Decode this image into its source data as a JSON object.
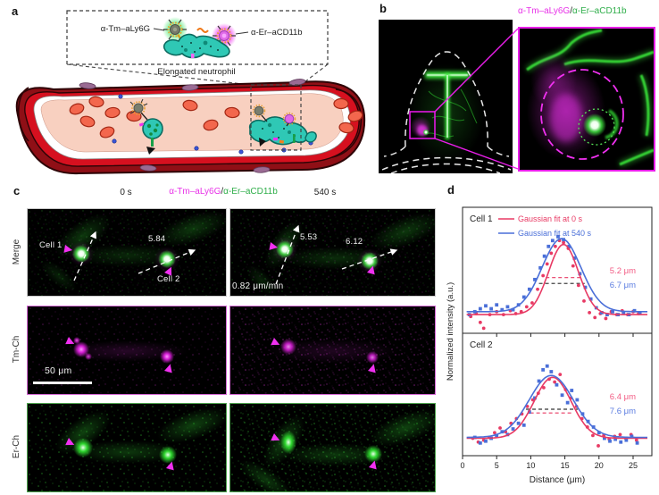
{
  "colors": {
    "magenta_label": "#e832e8",
    "green_label": "#2fae4a",
    "fit_0s": "#e83a64",
    "fit_540s": "#4a6fd8",
    "value_0s": "#f25c84",
    "value_540s": "#5b7ce0",
    "microscopy_green": "#38e038",
    "microscopy_magenta": "#e030e0"
  },
  "panels": {
    "a_label": "a",
    "b_label": "b",
    "c_label": "c",
    "d_label": "d"
  },
  "panel_a": {
    "antibody_left": "α-Tm–aLy6G",
    "antibody_right": "α-Er–aCD11b",
    "caption": "Elongated neutrophil"
  },
  "panel_b": {
    "header_tm": "α-Tm–aLy6G",
    "header_sep": "/",
    "header_er": "α-Er–aCD11b"
  },
  "panel_c": {
    "time_0": "0 s",
    "time_540": "540 s",
    "header_tm": "α-Tm–aLy6G",
    "header_sep": "/",
    "header_er": "α-Er–aCD11b",
    "rows": [
      "Merge",
      "Tm-Ch",
      "Er-Ch"
    ],
    "cell1_label": "Cell 1",
    "cell2_label": "Cell 2",
    "merge_0s_value": "5.84",
    "merge_540s_value1": "5.53",
    "merge_540s_value2": "6.12",
    "speed": "0.82 μm/min",
    "scale_bar": "50 μm"
  },
  "panel_d": {
    "ylabel": "Normalized intensity (a.u.)",
    "xlabel": "Distance (μm)"
  },
  "chart_data": [
    {
      "type": "line+scatter",
      "title": "Cell 1",
      "xlabel": "Distance (μm)",
      "ylabel": "Normalized intensity (a.u.)",
      "x_ticks": [
        0,
        5,
        10,
        15,
        20,
        25
      ],
      "xlim": [
        0,
        27.7
      ],
      "show_x_tick_labels": false,
      "legend": [
        {
          "label": "Gaussian fit at 0 s",
          "color": "#e83a64"
        },
        {
          "label": "Gaussian fit at 540 s",
          "color": "#4a6fd8"
        }
      ],
      "fits": [
        {
          "name": "Gaussian fit at 0 s",
          "color": "#e83a64",
          "center": 14.8,
          "fwhm_um": 5.2,
          "peak": 0.82,
          "baseline": 0.1,
          "value_label": "5.2 μm",
          "value_color": "#f25c84"
        },
        {
          "name": "Gaussian fit at 540 s",
          "color": "#4a6fd8",
          "center": 14.5,
          "fwhm_um": 6.7,
          "peak": 0.88,
          "baseline": 0.13,
          "value_label": "6.7 μm",
          "value_color": "#5b7ce0"
        }
      ],
      "fwhm_markers": [
        {
          "color": "#e83a64",
          "y": 0.48,
          "x1": 12.2,
          "x2": 17.4
        },
        {
          "color": "#444444",
          "y": 0.42,
          "x1": 11.2,
          "x2": 17.9
        }
      ],
      "scatter": [
        {
          "marker": "circle",
          "color": "#e83a64",
          "points": [
            [
              1.2,
              0.08
            ],
            [
              2,
              0.11
            ],
            [
              2.6,
              0.02
            ],
            [
              3.1,
              -0.04
            ],
            [
              4,
              0.1
            ],
            [
              5,
              0.13
            ],
            [
              6,
              0.1
            ],
            [
              7,
              0.14
            ],
            [
              7.8,
              0.11
            ],
            [
              8.6,
              0.13
            ],
            [
              9.4,
              0.18
            ],
            [
              10.2,
              0.22
            ],
            [
              11,
              0.36
            ],
            [
              11.8,
              0.5
            ],
            [
              12.4,
              0.62
            ],
            [
              13,
              0.73
            ],
            [
              13.6,
              0.8
            ],
            [
              14.2,
              0.86
            ],
            [
              14.8,
              0.84
            ],
            [
              15.5,
              0.78
            ],
            [
              16.2,
              0.6
            ],
            [
              17,
              0.4
            ],
            [
              17.8,
              0.24
            ],
            [
              18.6,
              0.12
            ],
            [
              19.4,
              0.07
            ],
            [
              20.2,
              0.11
            ],
            [
              21,
              0.06
            ],
            [
              21.8,
              0.13
            ],
            [
              22.6,
              0.1
            ],
            [
              23.4,
              0.14
            ],
            [
              24.2,
              0.1
            ],
            [
              25,
              0.13
            ],
            [
              25.8,
              0.11
            ]
          ]
        },
        {
          "marker": "square",
          "color": "#4a6fd8",
          "points": [
            [
              1,
              0.1
            ],
            [
              1.8,
              0.13
            ],
            [
              2.6,
              0.16
            ],
            [
              3.4,
              0.19
            ],
            [
              4.2,
              0.16
            ],
            [
              5,
              0.2
            ],
            [
              5.8,
              0.15
            ],
            [
              6.6,
              0.18
            ],
            [
              7.4,
              0.15
            ],
            [
              8.2,
              0.2
            ],
            [
              9,
              0.28
            ],
            [
              9.8,
              0.36
            ],
            [
              10.6,
              0.46
            ],
            [
              11.4,
              0.58
            ],
            [
              12,
              0.7
            ],
            [
              12.6,
              0.8
            ],
            [
              13.2,
              0.86
            ],
            [
              14,
              0.9
            ],
            [
              14.8,
              0.87
            ],
            [
              15.6,
              0.8
            ],
            [
              16.4,
              0.68
            ],
            [
              17.2,
              0.52
            ],
            [
              18,
              0.38
            ],
            [
              18.8,
              0.26
            ],
            [
              19.6,
              0.17
            ],
            [
              20.4,
              0.12
            ],
            [
              21.2,
              0.1
            ],
            [
              22,
              0.13
            ],
            [
              22.8,
              0.1
            ],
            [
              23.6,
              0.12
            ],
            [
              24.4,
              0.1
            ],
            [
              25.2,
              0.14
            ],
            [
              26,
              0.12
            ]
          ]
        }
      ]
    },
    {
      "type": "line+scatter",
      "title": "Cell 2",
      "xlabel": "Distance (μm)",
      "x_ticks": [
        0,
        5,
        10,
        15,
        20,
        25
      ],
      "xlim": [
        0,
        27.7
      ],
      "show_x_tick_labels": true,
      "fits": [
        {
          "name": "Gaussian fit at 0 s",
          "color": "#e83a64",
          "center": 13.2,
          "fwhm_um": 6.4,
          "peak": 0.74,
          "baseline": 0.09,
          "value_label": "6.4 μm",
          "value_color": "#f25c84"
        },
        {
          "name": "Gaussian fit at 540 s",
          "color": "#4a6fd8",
          "center": 13.0,
          "fwhm_um": 7.6,
          "peak": 0.76,
          "baseline": 0.1,
          "value_label": "7.6 μm",
          "value_color": "#5b7ce0"
        }
      ],
      "fwhm_markers": [
        {
          "color": "#333333",
          "y": 0.4,
          "x1": 9.3,
          "x2": 16.9
        },
        {
          "color": "#e83a64",
          "y": 0.36,
          "x1": 9.9,
          "x2": 16.3
        }
      ],
      "scatter": [
        {
          "marker": "circle",
          "color": "#e83a64",
          "points": [
            [
              1.5,
              0.09
            ],
            [
              2.3,
              0.05
            ],
            [
              3.1,
              0.07
            ],
            [
              3.9,
              0.1
            ],
            [
              4.7,
              0.15
            ],
            [
              5.5,
              0.2
            ],
            [
              6.3,
              0.16
            ],
            [
              7.1,
              0.25
            ],
            [
              7.9,
              0.3
            ],
            [
              8.7,
              0.35
            ],
            [
              9.5,
              0.43
            ],
            [
              10.3,
              0.5
            ],
            [
              11.1,
              0.57
            ],
            [
              11.9,
              0.63
            ],
            [
              12.7,
              0.72
            ],
            [
              13.5,
              0.69
            ],
            [
              14.3,
              0.77
            ],
            [
              15.1,
              0.61
            ],
            [
              15.9,
              0.52
            ],
            [
              16.7,
              0.43
            ],
            [
              17.5,
              0.3
            ],
            [
              18.3,
              0.21
            ],
            [
              19.1,
              0.12
            ],
            [
              19.9,
              0.01
            ],
            [
              20.7,
              0.12
            ],
            [
              21.5,
              0.08
            ],
            [
              22.3,
              0.11
            ],
            [
              23.1,
              0.13
            ],
            [
              23.9,
              0.09
            ],
            [
              24.7,
              0.13
            ],
            [
              25.5,
              0.07
            ]
          ]
        },
        {
          "marker": "square",
          "color": "#4a6fd8",
          "points": [
            [
              1.8,
              0.1
            ],
            [
              2.6,
              0.04
            ],
            [
              3.4,
              0.06
            ],
            [
              4.2,
              0.09
            ],
            [
              5,
              0.12
            ],
            [
              5.8,
              0.16
            ],
            [
              6.6,
              0.13
            ],
            [
              7.4,
              0.19
            ],
            [
              8.2,
              0.25
            ],
            [
              9,
              0.23
            ],
            [
              9.8,
              0.37
            ],
            [
              10.6,
              0.52
            ],
            [
              11.2,
              0.7
            ],
            [
              11.8,
              0.82
            ],
            [
              12.4,
              0.86
            ],
            [
              13,
              0.8
            ],
            [
              13.8,
              0.66
            ],
            [
              14.6,
              0.55
            ],
            [
              15.4,
              0.47
            ],
            [
              16,
              0.6
            ],
            [
              16.8,
              0.5
            ],
            [
              17.6,
              0.35
            ],
            [
              18.4,
              0.27
            ],
            [
              19.2,
              0.21
            ],
            [
              20,
              0.15
            ],
            [
              20.8,
              0.09
            ],
            [
              21.6,
              0.06
            ],
            [
              22.4,
              0.08
            ],
            [
              23.2,
              0.05
            ],
            [
              24,
              0.07
            ],
            [
              24.8,
              0.11
            ],
            [
              25.6,
              0.04
            ]
          ]
        }
      ]
    }
  ]
}
